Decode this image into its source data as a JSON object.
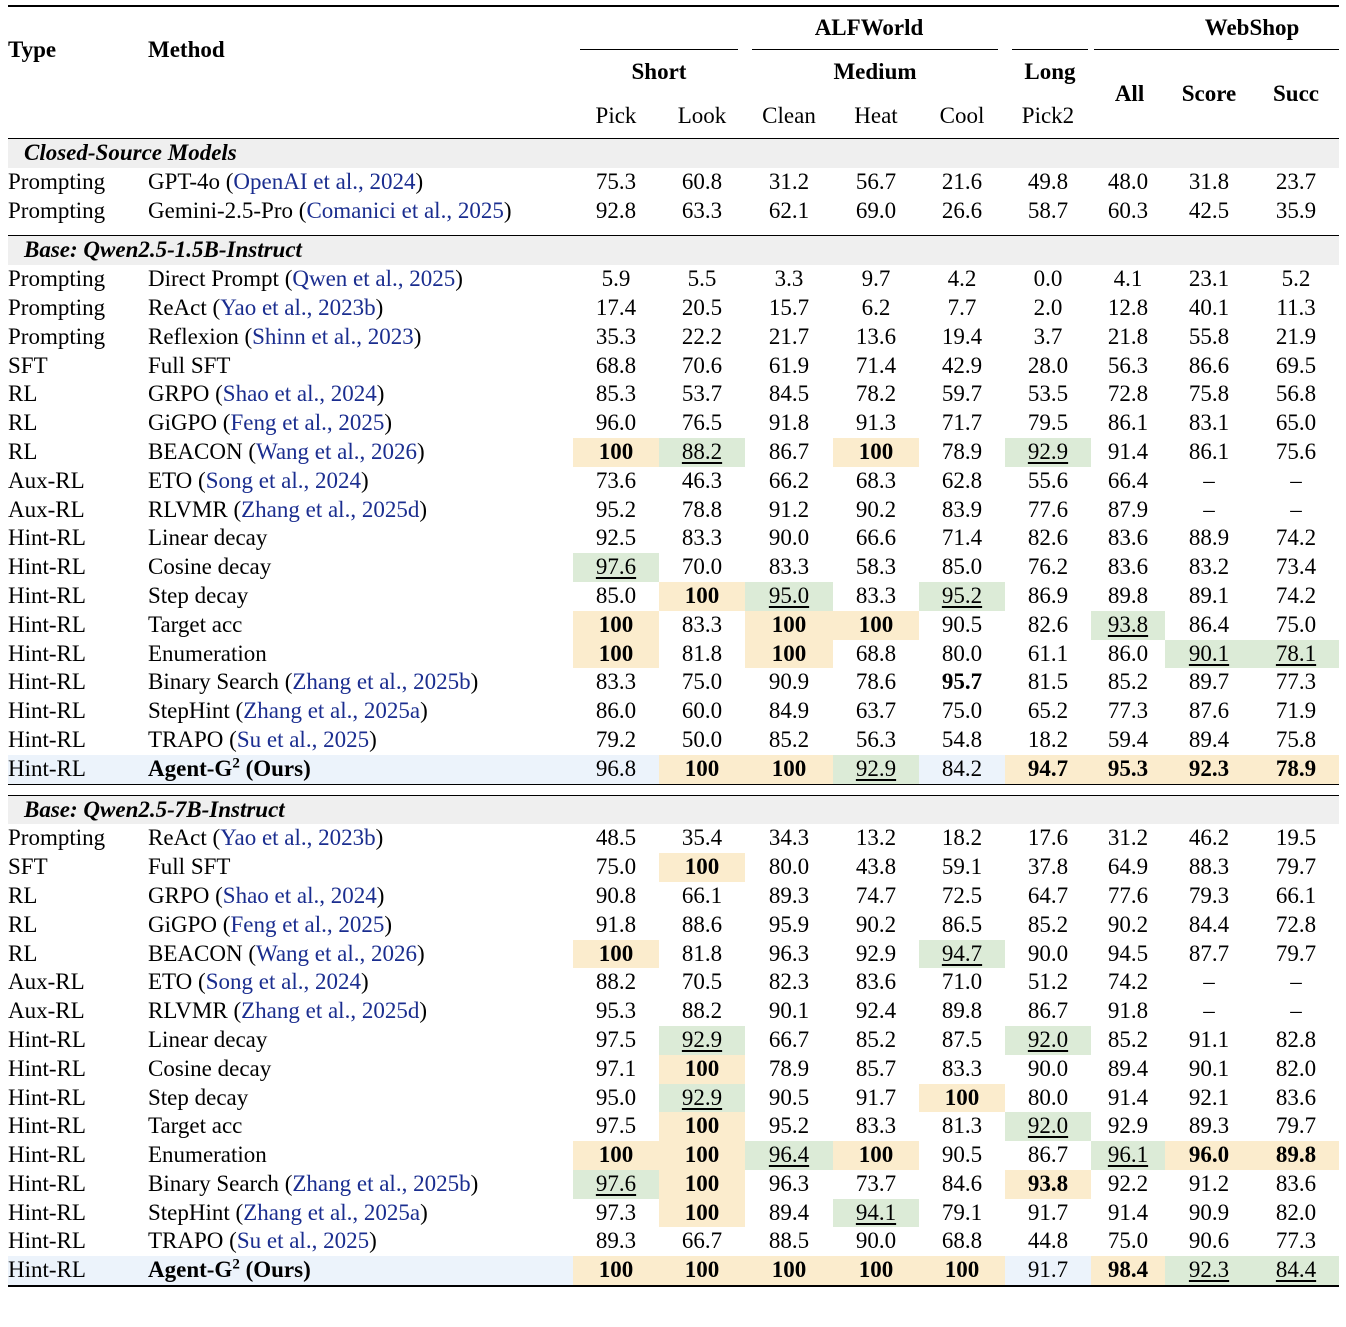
{
  "header": {
    "type": "Type",
    "method": "Method",
    "alfworld": "ALFWorld",
    "webshop": "WebShop",
    "short": "Short",
    "medium": "Medium",
    "long": "Long",
    "all": "All",
    "score": "Score",
    "succ": "Succ",
    "pick": "Pick",
    "look": "Look",
    "clean": "Clean",
    "heat": "Heat",
    "cool": "Cool",
    "pick2": "Pick2"
  },
  "sections": [
    {
      "title": "Closed-Source Models",
      "rows": [
        {
          "type": "Prompting",
          "method": "GPT-4o",
          "cite": "OpenAI et al., 2024",
          "vals": [
            "75.3",
            "60.8",
            "31.2",
            "56.7",
            "21.6",
            "49.8",
            "48.0",
            "31.8",
            "23.7"
          ],
          "hl": [
            "",
            "",
            "",
            "",
            "",
            "",
            "",
            "",
            ""
          ]
        },
        {
          "type": "Prompting",
          "method": "Gemini-2.5-Pro",
          "cite": "Comanici et al., 2025",
          "vals": [
            "92.8",
            "63.3",
            "62.1",
            "69.0",
            "26.6",
            "58.7",
            "60.3",
            "42.5",
            "35.9"
          ],
          "hl": [
            "",
            "",
            "",
            "",
            "",
            "",
            "",
            "",
            ""
          ]
        }
      ]
    },
    {
      "title": "Base: Qwen2.5-1.5B-Instruct",
      "rows": [
        {
          "type": "Prompting",
          "method": "Direct Prompt",
          "cite": "Qwen et al., 2025",
          "vals": [
            "5.9",
            "5.5",
            "3.3",
            "9.7",
            "4.2",
            "0.0",
            "4.1",
            "23.1",
            "5.2"
          ],
          "hl": [
            "",
            "",
            "",
            "",
            "",
            "",
            "",
            "",
            ""
          ]
        },
        {
          "type": "Prompting",
          "method": "ReAct",
          "cite": "Yao et al., 2023b",
          "vals": [
            "17.4",
            "20.5",
            "15.7",
            "6.2",
            "7.7",
            "2.0",
            "12.8",
            "40.1",
            "11.3"
          ],
          "hl": [
            "",
            "",
            "",
            "",
            "",
            "",
            "",
            "",
            ""
          ]
        },
        {
          "type": "Prompting",
          "method": "Reflexion",
          "cite": "Shinn et al., 2023",
          "vals": [
            "35.3",
            "22.2",
            "21.7",
            "13.6",
            "19.4",
            "3.7",
            "21.8",
            "55.8",
            "21.9"
          ],
          "hl": [
            "",
            "",
            "",
            "",
            "",
            "",
            "",
            "",
            ""
          ]
        },
        {
          "type": "SFT",
          "method": "Full SFT",
          "cite": "",
          "vals": [
            "68.8",
            "70.6",
            "61.9",
            "71.4",
            "42.9",
            "28.0",
            "56.3",
            "86.6",
            "69.5"
          ],
          "hl": [
            "",
            "",
            "",
            "",
            "",
            "",
            "",
            "",
            ""
          ]
        },
        {
          "type": "RL",
          "method": "GRPO",
          "cite": "Shao et al., 2024",
          "vals": [
            "85.3",
            "53.7",
            "84.5",
            "78.2",
            "59.7",
            "53.5",
            "72.8",
            "75.8",
            "56.8"
          ],
          "hl": [
            "",
            "",
            "",
            "",
            "",
            "",
            "",
            "",
            ""
          ]
        },
        {
          "type": "RL",
          "method": "GiGPO",
          "cite": "Feng et al., 2025",
          "vals": [
            "96.0",
            "76.5",
            "91.8",
            "91.3",
            "71.7",
            "79.5",
            "86.1",
            "83.1",
            "65.0"
          ],
          "hl": [
            "",
            "",
            "",
            "",
            "",
            "",
            "",
            "",
            ""
          ]
        },
        {
          "type": "RL",
          "method": "BEACON",
          "cite": "Wang et al., 2026",
          "vals": [
            "100",
            "88.2",
            "86.7",
            "100",
            "78.9",
            "92.9",
            "91.4",
            "86.1",
            "75.6"
          ],
          "hl": [
            "y",
            "g",
            "",
            "y",
            "",
            "g",
            "",
            "",
            ""
          ]
        },
        {
          "type": "Aux-RL",
          "method": "ETO",
          "cite": "Song et al., 2024",
          "vals": [
            "73.6",
            "46.3",
            "66.2",
            "68.3",
            "62.8",
            "55.6",
            "66.4",
            "–",
            "–"
          ],
          "hl": [
            "",
            "",
            "",
            "",
            "",
            "",
            "",
            "",
            ""
          ]
        },
        {
          "type": "Aux-RL",
          "method": "RLVMR",
          "cite": "Zhang et al., 2025d",
          "vals": [
            "95.2",
            "78.8",
            "91.2",
            "90.2",
            "83.9",
            "77.6",
            "87.9",
            "–",
            "–"
          ],
          "hl": [
            "",
            "",
            "",
            "",
            "",
            "",
            "",
            "",
            ""
          ]
        },
        {
          "type": "Hint-RL",
          "method": "Linear decay",
          "cite": "",
          "vals": [
            "92.5",
            "83.3",
            "90.0",
            "66.6",
            "71.4",
            "82.6",
            "83.6",
            "88.9",
            "74.2"
          ],
          "hl": [
            "",
            "",
            "",
            "",
            "",
            "",
            "",
            "",
            ""
          ]
        },
        {
          "type": "Hint-RL",
          "method": "Cosine decay",
          "cite": "",
          "vals": [
            "97.6",
            "70.0",
            "83.3",
            "58.3",
            "85.0",
            "76.2",
            "83.6",
            "83.2",
            "73.4"
          ],
          "hl": [
            "g",
            "",
            "",
            "",
            "",
            "",
            "",
            "",
            ""
          ]
        },
        {
          "type": "Hint-RL",
          "method": "Step decay",
          "cite": "",
          "vals": [
            "85.0",
            "100",
            "95.0",
            "83.3",
            "95.2",
            "86.9",
            "89.8",
            "89.1",
            "74.2"
          ],
          "hl": [
            "",
            "y",
            "g",
            "",
            "g",
            "",
            "",
            "",
            ""
          ]
        },
        {
          "type": "Hint-RL",
          "method": "Target acc",
          "cite": "",
          "vals": [
            "100",
            "83.3",
            "100",
            "100",
            "90.5",
            "82.6",
            "93.8",
            "86.4",
            "75.0"
          ],
          "hl": [
            "y",
            "",
            "y",
            "y",
            "",
            "",
            "g",
            "",
            ""
          ]
        },
        {
          "type": "Hint-RL",
          "method": "Enumeration",
          "cite": "",
          "vals": [
            "100",
            "81.8",
            "100",
            "68.8",
            "80.0",
            "61.1",
            "86.0",
            "90.1",
            "78.1"
          ],
          "hl": [
            "y",
            "",
            "y",
            "",
            "",
            "",
            "",
            "g",
            "g"
          ]
        },
        {
          "type": "Hint-RL",
          "method": "Binary Search",
          "cite": "Zhang et al., 2025b",
          "vals": [
            "83.3",
            "75.0",
            "90.9",
            "78.6",
            "95.7",
            "81.5",
            "85.2",
            "89.7",
            "77.3"
          ],
          "hl": [
            "",
            "",
            "",
            "",
            "yb",
            "",
            "",
            "",
            ""
          ]
        },
        {
          "type": "Hint-RL",
          "method": "StepHint",
          "cite": "Zhang et al., 2025a",
          "vals": [
            "86.0",
            "60.0",
            "84.9",
            "63.7",
            "75.0",
            "65.2",
            "77.3",
            "87.6",
            "71.9"
          ],
          "hl": [
            "",
            "",
            "",
            "",
            "",
            "",
            "",
            "",
            ""
          ]
        },
        {
          "type": "Hint-RL",
          "method": "TRAPO",
          "cite": "Su et al., 2025",
          "vals": [
            "79.2",
            "50.0",
            "85.2",
            "56.3",
            "54.8",
            "18.2",
            "59.4",
            "89.4",
            "75.8"
          ],
          "hl": [
            "",
            "",
            "",
            "",
            "",
            "",
            "",
            "",
            ""
          ]
        },
        {
          "type": "Hint-RL",
          "method": "Agent-G",
          "sup": "2",
          "suffix": " (Ours)",
          "cite": "",
          "ours": true,
          "vals": [
            "96.8",
            "100",
            "100",
            "92.9",
            "84.2",
            "94.7",
            "95.3",
            "92.3",
            "78.9"
          ],
          "hl": [
            "",
            "y",
            "y",
            "g",
            "",
            "y",
            "y",
            "y",
            "y"
          ]
        }
      ]
    },
    {
      "title": "Base: Qwen2.5-7B-Instruct",
      "rows": [
        {
          "type": "Prompting",
          "method": "ReAct",
          "cite": "Yao et al., 2023b",
          "vals": [
            "48.5",
            "35.4",
            "34.3",
            "13.2",
            "18.2",
            "17.6",
            "31.2",
            "46.2",
            "19.5"
          ],
          "hl": [
            "",
            "",
            "",
            "",
            "",
            "",
            "",
            "",
            ""
          ]
        },
        {
          "type": "SFT",
          "method": "Full SFT",
          "cite": "",
          "vals": [
            "75.0",
            "100",
            "80.0",
            "43.8",
            "59.1",
            "37.8",
            "64.9",
            "88.3",
            "79.7"
          ],
          "hl": [
            "",
            "y",
            "",
            "",
            "",
            "",
            "",
            "",
            ""
          ]
        },
        {
          "type": "RL",
          "method": "GRPO",
          "cite": "Shao et al., 2024",
          "vals": [
            "90.8",
            "66.1",
            "89.3",
            "74.7",
            "72.5",
            "64.7",
            "77.6",
            "79.3",
            "66.1"
          ],
          "hl": [
            "",
            "",
            "",
            "",
            "",
            "",
            "",
            "",
            ""
          ]
        },
        {
          "type": "RL",
          "method": "GiGPO",
          "cite": "Feng et al., 2025",
          "vals": [
            "91.8",
            "88.6",
            "95.9",
            "90.2",
            "86.5",
            "85.2",
            "90.2",
            "84.4",
            "72.8"
          ],
          "hl": [
            "",
            "",
            "",
            "",
            "",
            "",
            "",
            "",
            ""
          ]
        },
        {
          "type": "RL",
          "method": "BEACON",
          "cite": "Wang et al., 2026",
          "vals": [
            "100",
            "81.8",
            "96.3",
            "92.9",
            "94.7",
            "90.0",
            "94.5",
            "87.7",
            "79.7"
          ],
          "hl": [
            "y",
            "",
            "",
            "",
            "g",
            "",
            "",
            "",
            ""
          ]
        },
        {
          "type": "Aux-RL",
          "method": "ETO",
          "cite": "Song et al., 2024",
          "vals": [
            "88.2",
            "70.5",
            "82.3",
            "83.6",
            "71.0",
            "51.2",
            "74.2",
            "–",
            "–"
          ],
          "hl": [
            "",
            "",
            "",
            "",
            "",
            "",
            "",
            "",
            ""
          ]
        },
        {
          "type": "Aux-RL",
          "method": "RLVMR",
          "cite": "Zhang et al., 2025d",
          "vals": [
            "95.3",
            "88.2",
            "90.1",
            "92.4",
            "89.8",
            "86.7",
            "91.8",
            "–",
            "–"
          ],
          "hl": [
            "",
            "",
            "",
            "",
            "",
            "",
            "",
            "",
            ""
          ]
        },
        {
          "type": "Hint-RL",
          "method": "Linear decay",
          "cite": "",
          "vals": [
            "97.5",
            "92.9",
            "66.7",
            "85.2",
            "87.5",
            "92.0",
            "85.2",
            "91.1",
            "82.8"
          ],
          "hl": [
            "",
            "g",
            "",
            "",
            "",
            "g",
            "",
            "",
            ""
          ]
        },
        {
          "type": "Hint-RL",
          "method": "Cosine decay",
          "cite": "",
          "vals": [
            "97.1",
            "100",
            "78.9",
            "85.7",
            "83.3",
            "90.0",
            "89.4",
            "90.1",
            "82.0"
          ],
          "hl": [
            "",
            "y",
            "",
            "",
            "",
            "",
            "",
            "",
            ""
          ]
        },
        {
          "type": "Hint-RL",
          "method": "Step decay",
          "cite": "",
          "vals": [
            "95.0",
            "92.9",
            "90.5",
            "91.7",
            "100",
            "80.0",
            "91.4",
            "92.1",
            "83.6"
          ],
          "hl": [
            "",
            "g",
            "",
            "",
            "y",
            "",
            "",
            "",
            ""
          ]
        },
        {
          "type": "Hint-RL",
          "method": "Target acc",
          "cite": "",
          "vals": [
            "97.5",
            "100",
            "95.2",
            "83.3",
            "81.3",
            "92.0",
            "92.9",
            "89.3",
            "79.7"
          ],
          "hl": [
            "",
            "y",
            "",
            "",
            "",
            "g",
            "",
            "",
            ""
          ]
        },
        {
          "type": "Hint-RL",
          "method": "Enumeration",
          "cite": "",
          "vals": [
            "100",
            "100",
            "96.4",
            "100",
            "90.5",
            "86.7",
            "96.1",
            "96.0",
            "89.8"
          ],
          "hl": [
            "y",
            "y",
            "g",
            "y",
            "",
            "",
            "g",
            "y",
            "y"
          ]
        },
        {
          "type": "Hint-RL",
          "method": "Binary Search",
          "cite": "Zhang et al., 2025b",
          "vals": [
            "97.6",
            "100",
            "96.3",
            "73.7",
            "84.6",
            "93.8",
            "92.2",
            "91.2",
            "83.6"
          ],
          "hl": [
            "g",
            "y",
            "",
            "",
            "",
            "y",
            "",
            "",
            ""
          ]
        },
        {
          "type": "Hint-RL",
          "method": "StepHint",
          "cite": "Zhang et al., 2025a",
          "vals": [
            "97.3",
            "100",
            "89.4",
            "94.1",
            "79.1",
            "91.7",
            "91.4",
            "90.9",
            "82.0"
          ],
          "hl": [
            "",
            "y",
            "",
            "g",
            "",
            "",
            "",
            "",
            ""
          ]
        },
        {
          "type": "Hint-RL",
          "method": "TRAPO",
          "cite": "Su et al., 2025",
          "vals": [
            "89.3",
            "66.7",
            "88.5",
            "90.0",
            "68.8",
            "44.8",
            "75.0",
            "90.6",
            "77.3"
          ],
          "hl": [
            "",
            "",
            "",
            "",
            "",
            "",
            "",
            "",
            ""
          ]
        },
        {
          "type": "Hint-RL",
          "method": "Agent-G",
          "sup": "2",
          "suffix": " (Ours)",
          "cite": "",
          "ours": true,
          "vals": [
            "100",
            "100",
            "100",
            "100",
            "100",
            "91.7",
            "98.4",
            "92.3",
            "84.4"
          ],
          "hl": [
            "y",
            "y",
            "y",
            "y",
            "y",
            "",
            "y",
            "g",
            "g"
          ]
        }
      ]
    }
  ],
  "colors": {
    "best": "#fbeccd",
    "second": "#dcebd7",
    "section_bg": "#efefef",
    "ours_bg": "#ecf3fb",
    "citation": "#1a2d8f"
  }
}
